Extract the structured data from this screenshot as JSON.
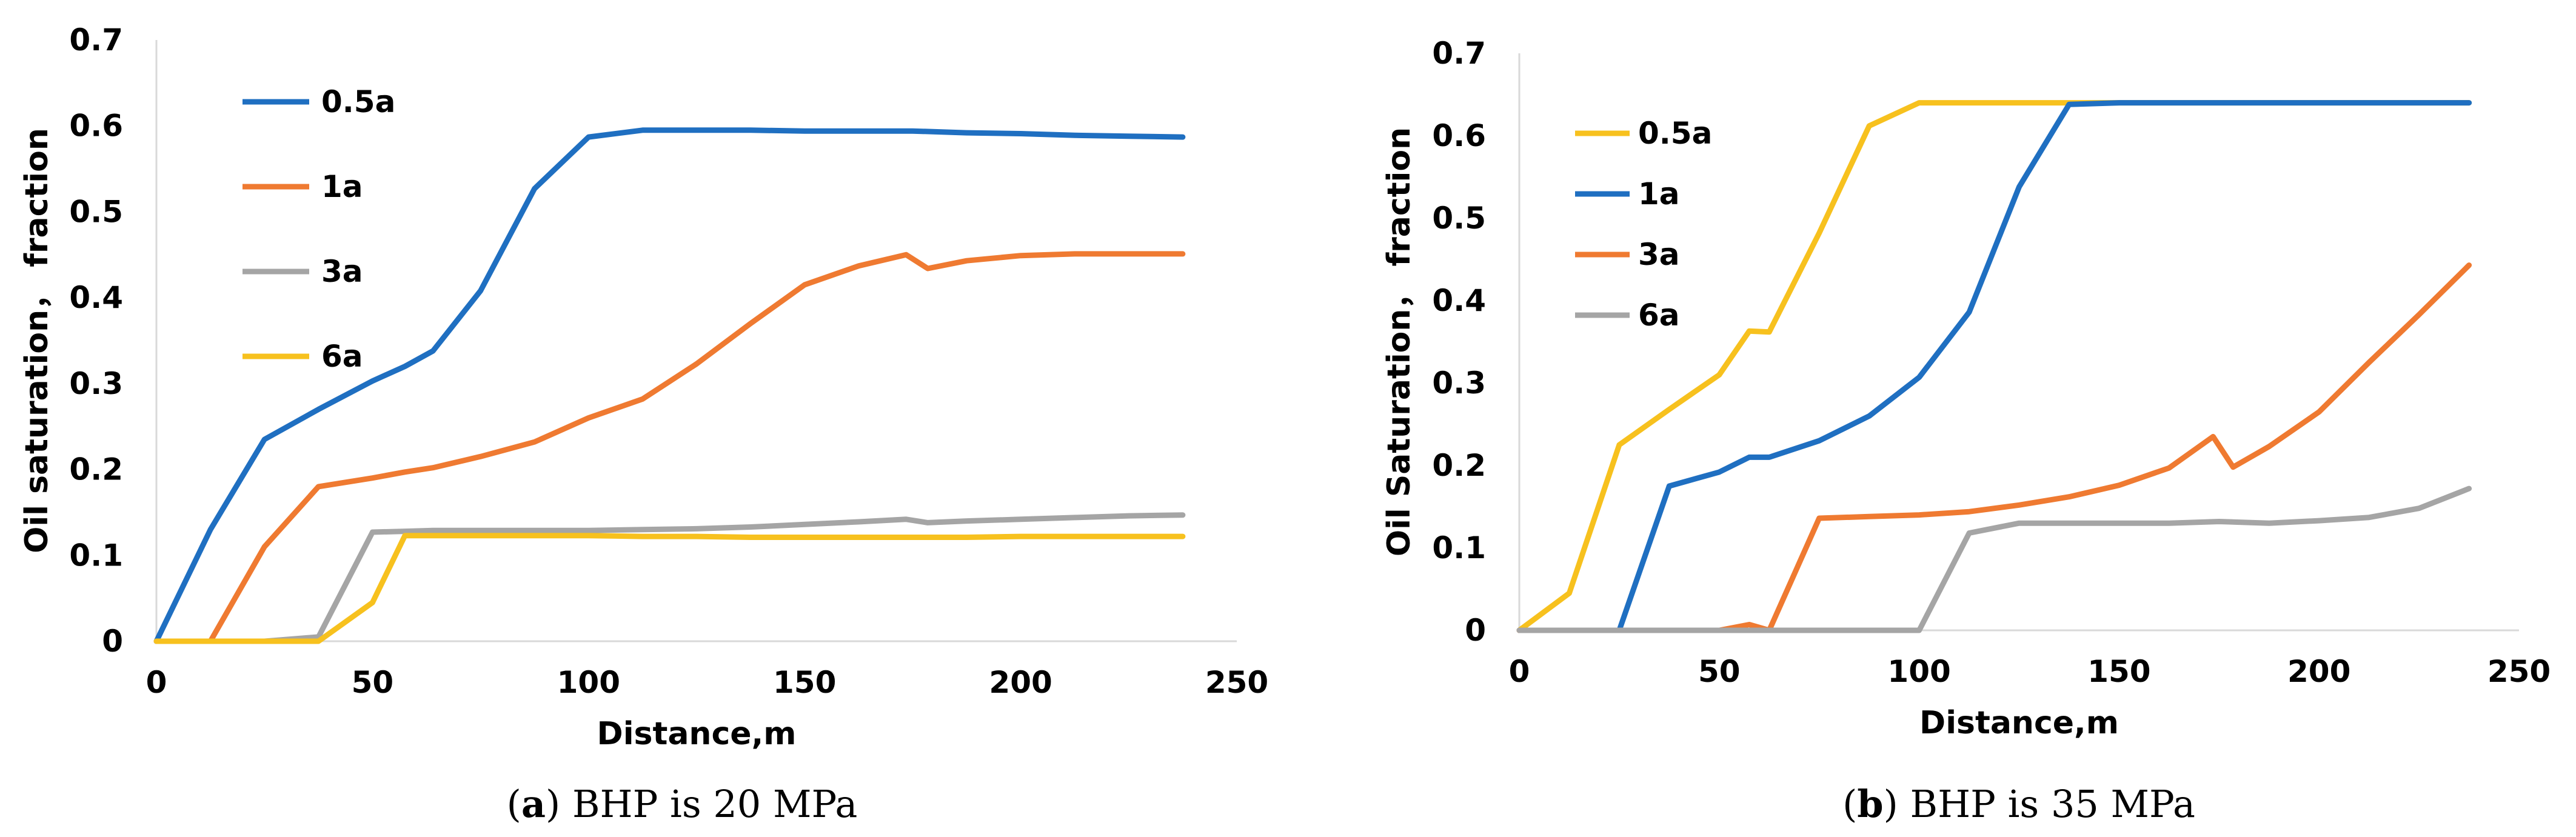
{
  "chart_data": [
    {
      "type": "line",
      "panel": "a",
      "caption_letter": "a",
      "caption_text": "BHP is 20 MPa",
      "xlabel": "Distance,m",
      "ylabel": "Oil saturation， fraction",
      "xlim": [
        0,
        250
      ],
      "ylim": [
        0,
        0.7
      ],
      "xticks": [
        0,
        50,
        100,
        150,
        200,
        250
      ],
      "yticks": [
        0,
        0.1,
        0.2,
        0.3,
        0.4,
        0.5,
        0.6,
        0.7
      ],
      "grid": false,
      "legend_position": "top-left",
      "series": [
        {
          "name": "0.5a",
          "color": "#1f6fc1",
          "x": [
            0,
            12.5,
            25,
            37.5,
            50,
            57.5,
            64,
            75,
            87.5,
            100,
            112.5,
            125,
            137.5,
            150,
            162.5,
            175,
            187.5,
            200,
            212.5,
            225,
            237.5
          ],
          "y": [
            0,
            0.13,
            0.235,
            0.27,
            0.303,
            0.32,
            0.338,
            0.408,
            0.527,
            0.587,
            0.595,
            0.595,
            0.595,
            0.594,
            0.594,
            0.594,
            0.592,
            0.591,
            0.589,
            0.588,
            0.587
          ]
        },
        {
          "name": "1a",
          "color": "#ef7a31",
          "x": [
            0,
            12.5,
            25,
            37.5,
            50,
            57.5,
            64,
            75,
            87.5,
            100,
            112.5,
            125,
            137.5,
            150,
            162.5,
            173.5,
            178.5,
            187.5,
            200,
            212.5,
            225,
            237.5
          ],
          "y": [
            0,
            0,
            0.11,
            0.18,
            0.19,
            0.197,
            0.202,
            0.215,
            0.232,
            0.26,
            0.282,
            0.323,
            0.37,
            0.415,
            0.437,
            0.45,
            0.434,
            0.443,
            0.449,
            0.451,
            0.451,
            0.451
          ]
        },
        {
          "name": "3a",
          "color": "#a5a5a5",
          "x": [
            0,
            12.5,
            25,
            37.5,
            50,
            57.5,
            64,
            75,
            87.5,
            100,
            112.5,
            125,
            137.5,
            150,
            162.5,
            173.5,
            178.5,
            187.5,
            200,
            212.5,
            225,
            237.5
          ],
          "y": [
            0,
            0,
            0,
            0.005,
            0.127,
            0.128,
            0.129,
            0.129,
            0.129,
            0.129,
            0.13,
            0.131,
            0.133,
            0.136,
            0.139,
            0.142,
            0.138,
            0.14,
            0.142,
            0.144,
            0.146,
            0.147
          ]
        },
        {
          "name": "6a",
          "color": "#f7c11e",
          "x": [
            0,
            12.5,
            25,
            37.5,
            50,
            57.5,
            64,
            75,
            87.5,
            100,
            112.5,
            125,
            137.5,
            150,
            162.5,
            175,
            187.5,
            200,
            212.5,
            225,
            237.5
          ],
          "y": [
            0,
            0,
            0,
            0,
            0.045,
            0.123,
            0.123,
            0.123,
            0.123,
            0.123,
            0.122,
            0.122,
            0.121,
            0.121,
            0.121,
            0.121,
            0.121,
            0.122,
            0.122,
            0.122,
            0.122
          ]
        }
      ]
    },
    {
      "type": "line",
      "panel": "b",
      "caption_letter": "b",
      "caption_text": "BHP is 35 MPa",
      "xlabel": "Distance,m",
      "ylabel": "Oil Saturation， fraction",
      "xlim": [
        0,
        250
      ],
      "ylim": [
        0,
        0.7
      ],
      "xticks": [
        0,
        50,
        100,
        150,
        200,
        250
      ],
      "yticks": [
        0,
        0.1,
        0.2,
        0.3,
        0.4,
        0.5,
        0.6,
        0.7
      ],
      "grid": false,
      "legend_position": "top-left",
      "series": [
        {
          "name": "0.5a",
          "color": "#f7c11e",
          "x": [
            0,
            12.5,
            25,
            37.5,
            50,
            57.5,
            62.5,
            75,
            87.5,
            100,
            112.5,
            125,
            137.5,
            150,
            162.5,
            175,
            187.5,
            200,
            212.5,
            225,
            237.5
          ],
          "y": [
            0,
            0.045,
            0.225,
            0.268,
            0.31,
            0.363,
            0.362,
            0.482,
            0.612,
            0.64,
            0.64,
            0.64,
            0.64,
            0.64,
            0.64,
            0.64,
            0.64,
            0.64,
            0.64,
            0.64,
            0.64
          ]
        },
        {
          "name": "1a",
          "color": "#1f6fc1",
          "x": [
            0,
            25,
            37.5,
            50,
            57.5,
            62.5,
            75,
            87.5,
            100,
            112.5,
            125,
            137.5,
            150,
            162.5,
            175,
            187.5,
            200,
            212.5,
            225,
            237.5
          ],
          "y": [
            0,
            0,
            0.175,
            0.192,
            0.21,
            0.21,
            0.23,
            0.26,
            0.307,
            0.386,
            0.538,
            0.638,
            0.64,
            0.64,
            0.64,
            0.64,
            0.64,
            0.64,
            0.64,
            0.64
          ]
        },
        {
          "name": "3a",
          "color": "#ef7a31",
          "x": [
            0,
            50,
            57.5,
            62.5,
            75,
            87.5,
            100,
            112.5,
            125,
            137.5,
            150,
            162.5,
            173.5,
            178.5,
            187.5,
            200,
            212.5,
            225,
            237.5
          ],
          "y": [
            0,
            0,
            0.007,
            0,
            0.136,
            0.138,
            0.14,
            0.144,
            0.152,
            0.162,
            0.176,
            0.197,
            0.235,
            0.198,
            0.223,
            0.265,
            0.325,
            0.383,
            0.443
          ]
        },
        {
          "name": "6a",
          "color": "#a5a5a5",
          "x": [
            0,
            100,
            112.5,
            125,
            137.5,
            150,
            162.5,
            175,
            187.5,
            200,
            212.5,
            225,
            237.5
          ],
          "y": [
            0,
            0,
            0.118,
            0.13,
            0.13,
            0.13,
            0.13,
            0.132,
            0.13,
            0.133,
            0.137,
            0.148,
            0.172
          ]
        }
      ]
    }
  ]
}
